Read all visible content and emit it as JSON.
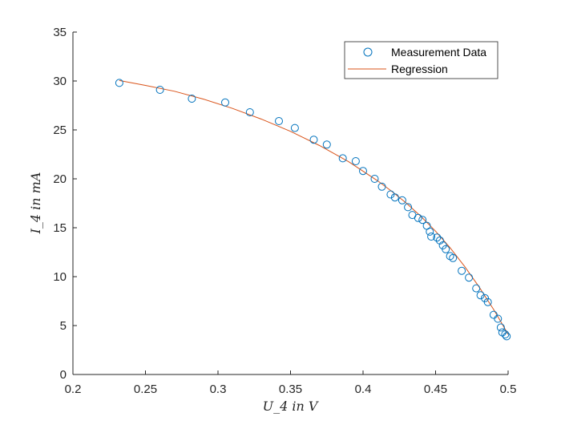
{
  "chart_data": {
    "type": "scatter",
    "xlabel": "U_4 in V",
    "ylabel": "I_4 in mA",
    "xlim": [
      0.2,
      0.5
    ],
    "ylim": [
      0,
      35
    ],
    "x_ticks": [
      0.2,
      0.25,
      0.3,
      0.35,
      0.4,
      0.45,
      0.5
    ],
    "y_ticks": [
      0,
      5,
      10,
      15,
      20,
      25,
      30,
      35
    ],
    "grid": false,
    "legend_position": "top-right",
    "series": [
      {
        "name": "Measurement Data",
        "kind": "markers",
        "marker": "circle",
        "color": "#0072bd",
        "points": [
          [
            0.232,
            29.8
          ],
          [
            0.26,
            29.1
          ],
          [
            0.282,
            28.2
          ],
          [
            0.305,
            27.8
          ],
          [
            0.322,
            26.8
          ],
          [
            0.342,
            25.9
          ],
          [
            0.353,
            25.2
          ],
          [
            0.366,
            24.0
          ],
          [
            0.375,
            23.5
          ],
          [
            0.386,
            22.1
          ],
          [
            0.395,
            21.8
          ],
          [
            0.4,
            20.8
          ],
          [
            0.408,
            20.0
          ],
          [
            0.413,
            19.2
          ],
          [
            0.419,
            18.4
          ],
          [
            0.422,
            18.1
          ],
          [
            0.427,
            17.8
          ],
          [
            0.431,
            17.1
          ],
          [
            0.434,
            16.3
          ],
          [
            0.438,
            16.0
          ],
          [
            0.441,
            15.8
          ],
          [
            0.444,
            15.2
          ],
          [
            0.446,
            14.6
          ],
          [
            0.447,
            14.1
          ],
          [
            0.451,
            14.0
          ],
          [
            0.453,
            13.7
          ],
          [
            0.455,
            13.2
          ],
          [
            0.457,
            12.8
          ],
          [
            0.46,
            12.1
          ],
          [
            0.462,
            11.9
          ],
          [
            0.468,
            10.6
          ],
          [
            0.473,
            9.9
          ],
          [
            0.478,
            8.8
          ],
          [
            0.481,
            8.1
          ],
          [
            0.484,
            7.8
          ],
          [
            0.486,
            7.4
          ],
          [
            0.49,
            6.1
          ],
          [
            0.493,
            5.7
          ],
          [
            0.495,
            4.8
          ],
          [
            0.496,
            4.3
          ],
          [
            0.498,
            4.1
          ],
          [
            0.499,
            3.9
          ]
        ]
      },
      {
        "name": "Regression",
        "kind": "line",
        "color": "#d95319",
        "points": [
          [
            0.232,
            30.05
          ],
          [
            0.25,
            29.55
          ],
          [
            0.27,
            28.95
          ],
          [
            0.29,
            28.15
          ],
          [
            0.31,
            27.2
          ],
          [
            0.33,
            26.1
          ],
          [
            0.35,
            24.85
          ],
          [
            0.37,
            23.4
          ],
          [
            0.39,
            21.75
          ],
          [
            0.41,
            19.8
          ],
          [
            0.42,
            18.7
          ],
          [
            0.43,
            17.5
          ],
          [
            0.44,
            16.15
          ],
          [
            0.45,
            14.65
          ],
          [
            0.46,
            12.95
          ],
          [
            0.47,
            11.05
          ],
          [
            0.48,
            8.95
          ],
          [
            0.49,
            6.65
          ],
          [
            0.495,
            5.4
          ],
          [
            0.5,
            4.1
          ]
        ]
      }
    ]
  }
}
